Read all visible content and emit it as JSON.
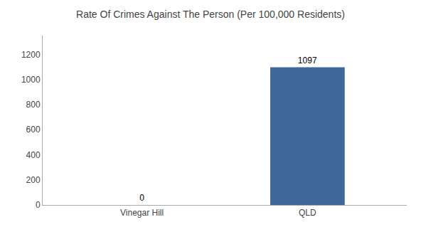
{
  "chart_data": {
    "type": "bar",
    "title": "Rate Of Crimes Against The Person (Per 100,000 Residents)",
    "categories": [
      "Vinegar Hill",
      "QLD"
    ],
    "values": [
      0,
      1097
    ],
    "color": "#3d6899",
    "ylim": [
      0,
      1350
    ],
    "yticks": [
      0,
      200,
      400,
      600,
      800,
      1000,
      1200
    ],
    "grid": false,
    "data_labels": true
  }
}
